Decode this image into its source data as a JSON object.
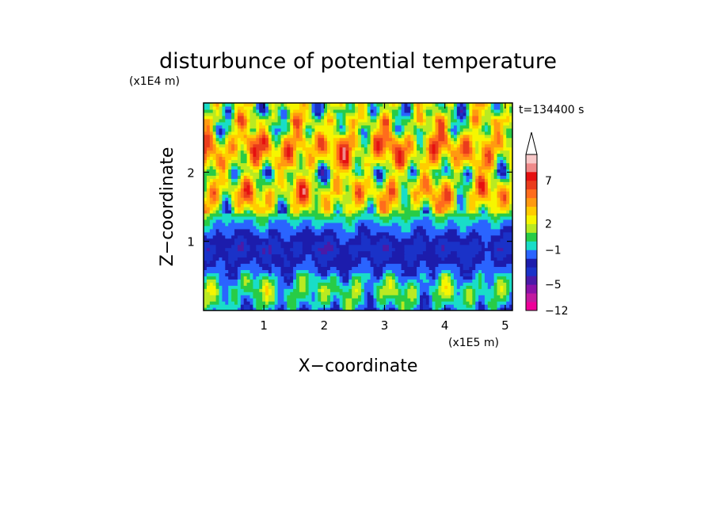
{
  "chart_data": {
    "type": "heatmap",
    "title": "disturbunce of potential temperature",
    "time_label": "t=134400 s",
    "xlabel": "X−coordinate",
    "ylabel": "Z−coordinate",
    "x_unit": "(x1E5 m)",
    "y_unit": "(x1E4 m)",
    "xlim": [
      0,
      5.12
    ],
    "ylim": [
      0,
      3.0
    ],
    "x_ticks": [
      {
        "value": 1,
        "label": "1"
      },
      {
        "value": 2,
        "label": "2"
      },
      {
        "value": 3,
        "label": "3"
      },
      {
        "value": 4,
        "label": "4"
      },
      {
        "value": 5,
        "label": "5"
      }
    ],
    "y_ticks": [
      {
        "value": 1,
        "label": "1"
      },
      {
        "value": 2,
        "label": "2"
      }
    ],
    "colorbar": {
      "colors": [
        "#ee0099",
        "#c21aa0",
        "#8a12a8",
        "#4a1aa8",
        "#1a32c8",
        "#1c1cac",
        "#2a64ff",
        "#19ddc8",
        "#28cc46",
        "#b9ea22",
        "#f6f600",
        "#ffcc00",
        "#ff9a10",
        "#ff6c1c",
        "#ea3c1c",
        "#e61010",
        "#f08a8a",
        "#f8c8c8"
      ],
      "tick_labels": [
        {
          "label": "7",
          "boundary": 15
        },
        {
          "label": "2",
          "boundary": 10
        },
        {
          "label": "−1",
          "boundary": 7
        },
        {
          "label": "−5",
          "boundary": 3
        },
        {
          "label": "−12",
          "boundary": 0
        }
      ],
      "extend": "max"
    },
    "band_profile": [
      {
        "z": 0.0,
        "level": 6
      },
      {
        "z": 0.1,
        "level": 7
      },
      {
        "z": 0.3,
        "level": 8
      },
      {
        "z": 0.45,
        "level": 7
      },
      {
        "z": 0.55,
        "level": 6
      },
      {
        "z": 0.7,
        "level": 5
      },
      {
        "z": 0.9,
        "level": 4
      },
      {
        "z": 1.05,
        "level": 5
      },
      {
        "z": 1.18,
        "level": 6
      },
      {
        "z": 1.32,
        "level": 7
      },
      {
        "z": 1.45,
        "level": 9
      },
      {
        "z": 1.55,
        "level": 10
      },
      {
        "z": 1.7,
        "level": 11
      },
      {
        "z": 1.85,
        "level": 10
      },
      {
        "z": 2.0,
        "level": 8
      },
      {
        "z": 2.1,
        "level": 10
      },
      {
        "z": 2.2,
        "level": 11
      },
      {
        "z": 2.35,
        "level": 12
      },
      {
        "z": 2.5,
        "level": 11
      },
      {
        "z": 2.6,
        "level": 9
      },
      {
        "z": 2.75,
        "level": 10
      },
      {
        "z": 2.9,
        "level": 8
      },
      {
        "z": 3.0,
        "level": 9
      }
    ]
  }
}
